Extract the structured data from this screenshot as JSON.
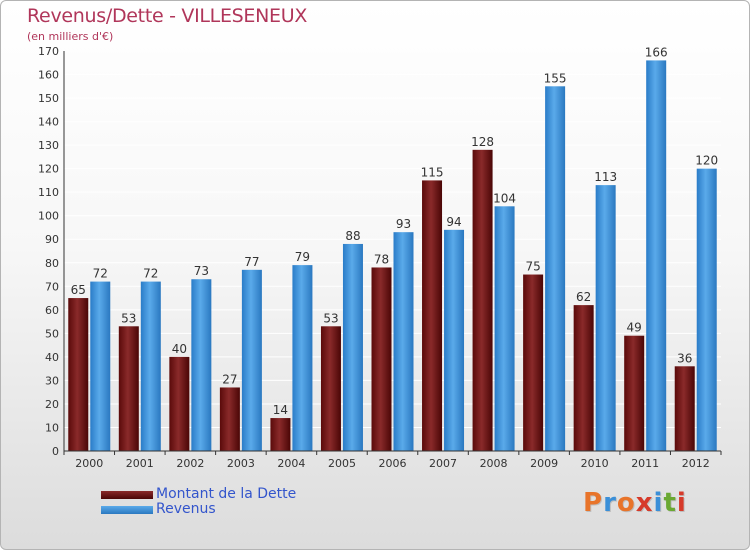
{
  "header": {
    "title": "Revenus/Dette - VILLESENEUX",
    "subtitle": "(en milliers d'€)"
  },
  "legend": [
    {
      "label": "Montant de la Dette",
      "color": "#6e1414"
    },
    {
      "label": "Revenus",
      "color": "#3a8fd8"
    }
  ],
  "logo": {
    "text": "Proxiti",
    "colors": [
      "#e8742a",
      "#3a8fd8",
      "#e8742a",
      "#d63a2a",
      "#3a8fd8",
      "#6aa832",
      "#d63a2a"
    ]
  },
  "chart_data": {
    "type": "bar",
    "title": "Revenus/Dette - VILLESENEUX",
    "ylabel": "(en milliers d'€)",
    "xlabel": "",
    "categories": [
      "2000",
      "2001",
      "2002",
      "2003",
      "2004",
      "2005",
      "2006",
      "2007",
      "2008",
      "2009",
      "2010",
      "2011",
      "2012"
    ],
    "series": [
      {
        "name": "Montant de la Dette",
        "color": "#6e1414",
        "values": [
          65,
          53,
          40,
          27,
          14,
          53,
          78,
          115,
          128,
          75,
          62,
          49,
          36
        ]
      },
      {
        "name": "Revenus",
        "color": "#3a8fd8",
        "values": [
          72,
          72,
          73,
          77,
          79,
          88,
          93,
          94,
          104,
          155,
          113,
          166,
          120
        ]
      }
    ],
    "ylim": [
      0,
      170
    ],
    "yticks": [
      0,
      10,
      20,
      30,
      40,
      50,
      60,
      70,
      80,
      90,
      100,
      110,
      120,
      130,
      140,
      150,
      160,
      170
    ],
    "grid": true,
    "legend_position": "bottom-left"
  }
}
